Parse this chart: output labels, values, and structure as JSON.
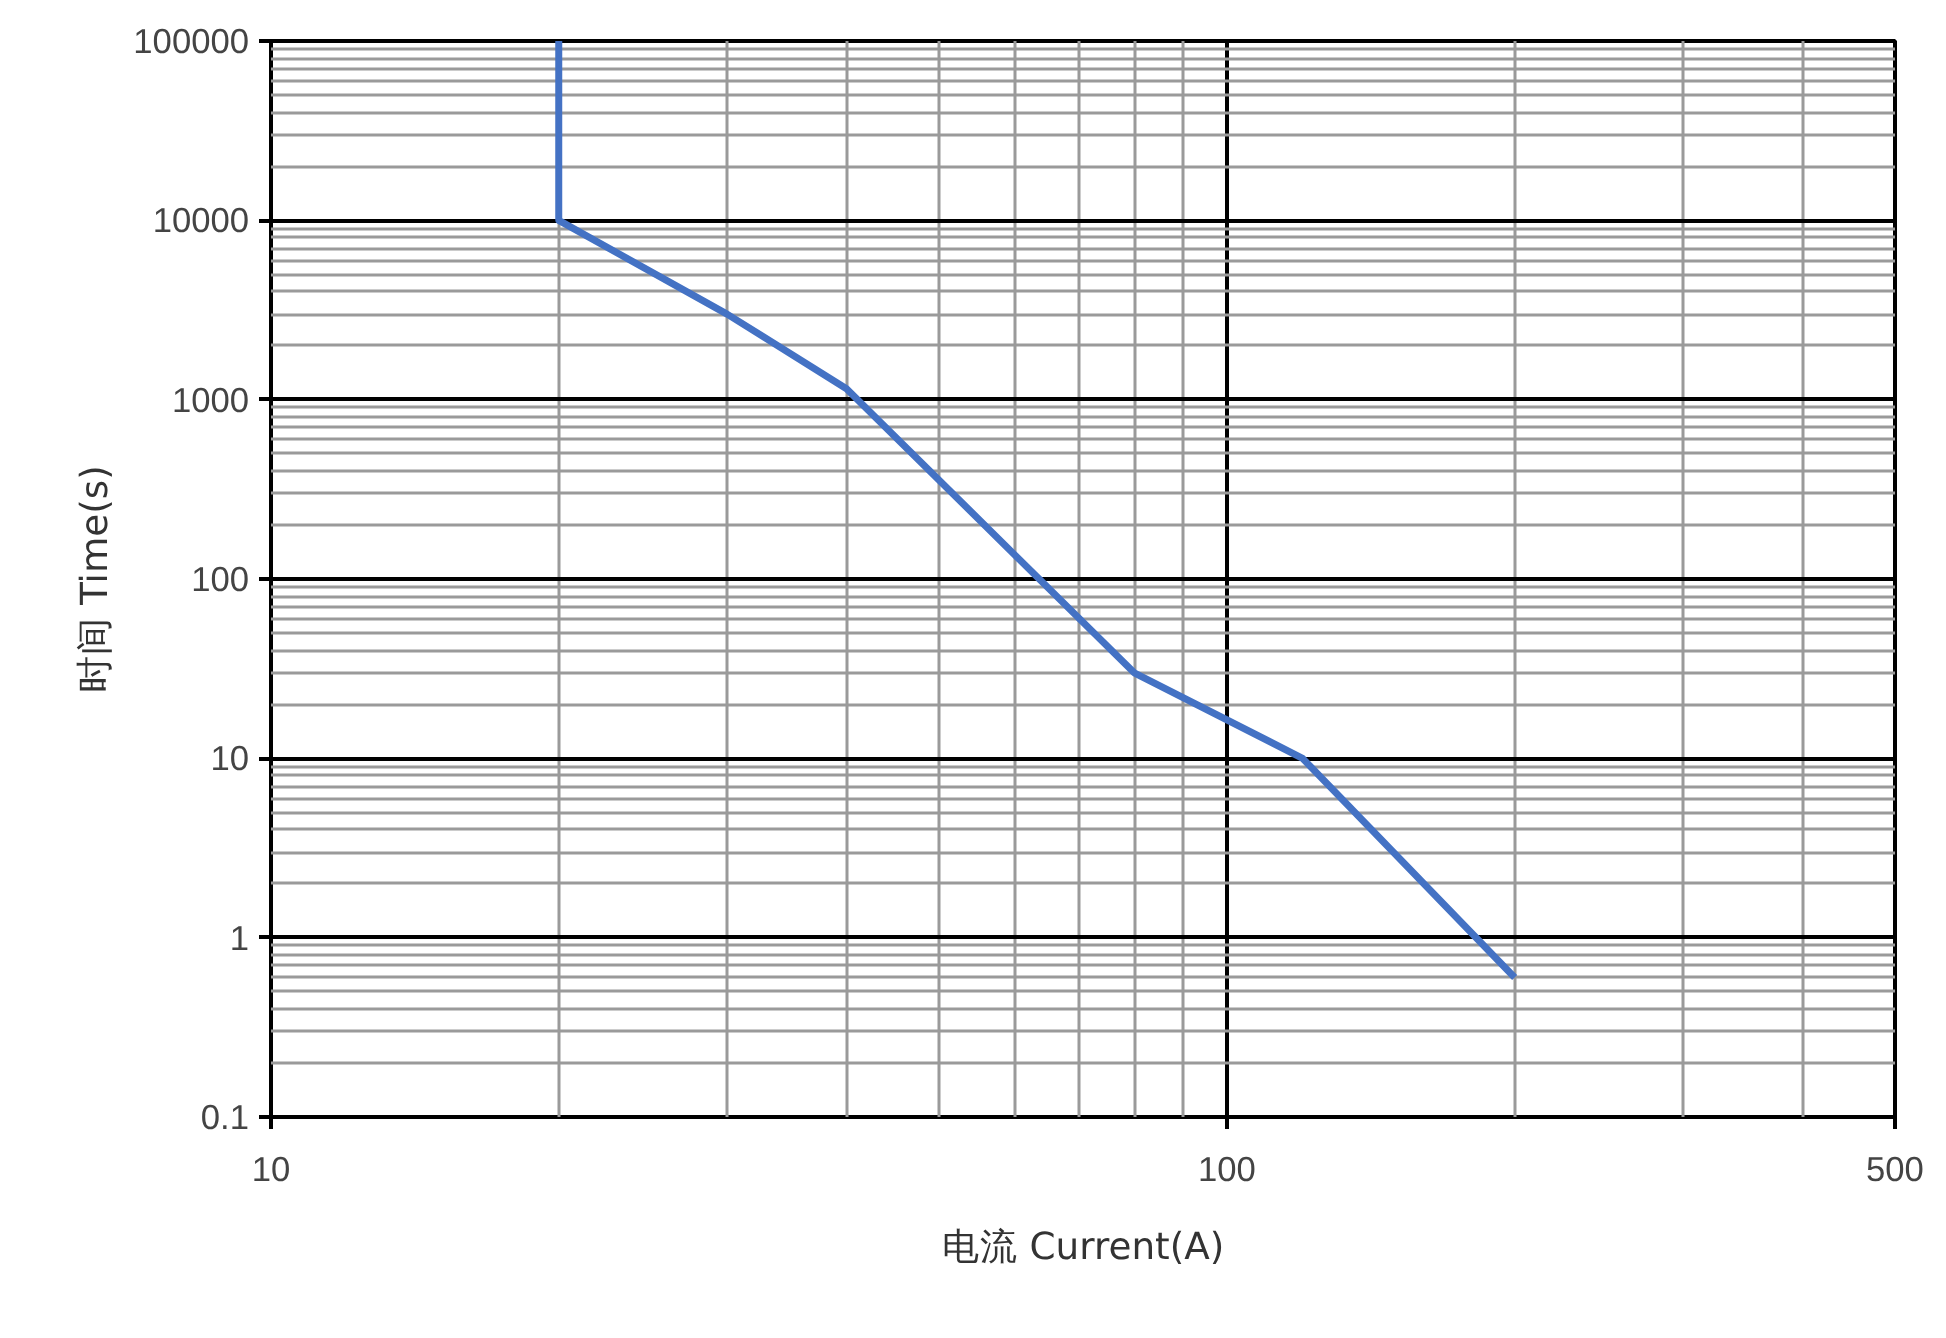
{
  "chart_data": {
    "type": "line",
    "xlabel": "电流 Current(A)",
    "ylabel": "时间 Time(s)",
    "log": "xy",
    "grid": true,
    "marker": "none",
    "line_style": "solid",
    "xlim": [
      10,
      500
    ],
    "xticks": [
      10,
      100,
      500
    ],
    "ylim": [
      0.1,
      100000
    ],
    "yticks": [
      0.1,
      1,
      10,
      100,
      1000,
      10000,
      100000
    ],
    "series": [
      {
        "color": "#4472c4",
        "x": [
          20,
          20,
          30,
          40,
          80,
          120,
          200
        ],
        "values": [
          100000,
          10000,
          3000,
          1150,
          30,
          10,
          0.6
        ]
      }
    ]
  }
}
